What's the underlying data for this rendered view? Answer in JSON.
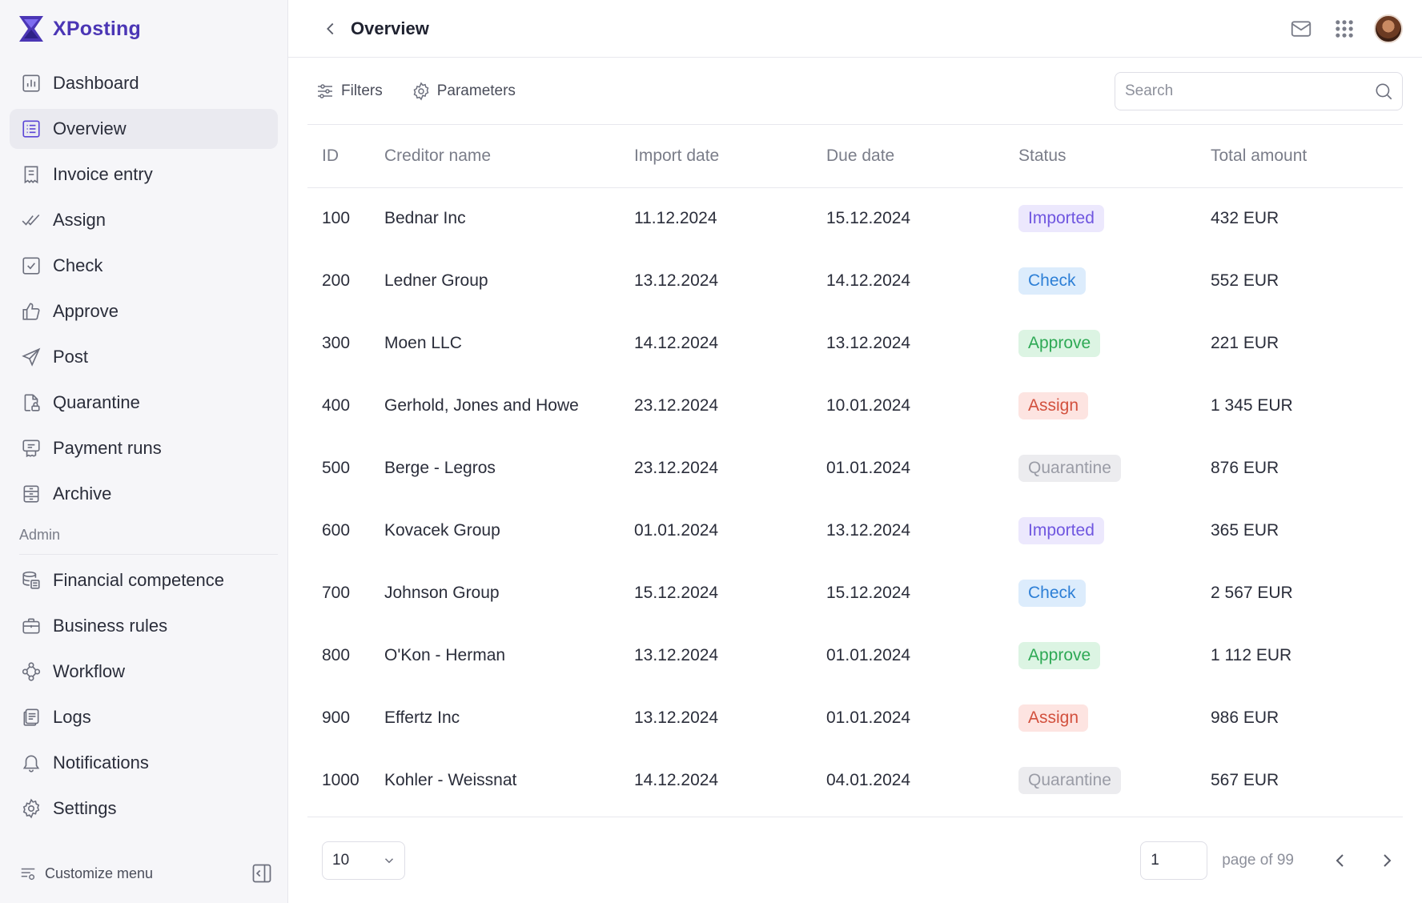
{
  "brand": {
    "name": "XPosting",
    "accent": "#4b36b5"
  },
  "sidebar": {
    "items": [
      {
        "label": "Dashboard",
        "icon": "chart-icon"
      },
      {
        "label": "Overview",
        "icon": "list-icon",
        "active": true
      },
      {
        "label": "Invoice entry",
        "icon": "receipt-icon"
      },
      {
        "label": "Assign",
        "icon": "double-check-icon"
      },
      {
        "label": "Check",
        "icon": "checkbox-icon"
      },
      {
        "label": "Approve",
        "icon": "thumbs-up-icon"
      },
      {
        "label": "Post",
        "icon": "send-icon"
      },
      {
        "label": "Quarantine",
        "icon": "file-lock-icon"
      },
      {
        "label": "Payment runs",
        "icon": "payment-icon"
      },
      {
        "label": "Archive",
        "icon": "archive-icon"
      }
    ],
    "admin_label": "Admin",
    "admin_items": [
      {
        "label": "Financial competence",
        "icon": "database-icon"
      },
      {
        "label": "Business rules",
        "icon": "briefcase-icon"
      },
      {
        "label": "Workflow",
        "icon": "workflow-icon"
      },
      {
        "label": "Logs",
        "icon": "logs-icon"
      },
      {
        "label": "Notifications",
        "icon": "bell-icon"
      },
      {
        "label": "Settings",
        "icon": "gear-icon"
      }
    ],
    "customize_label": "Customize menu"
  },
  "header": {
    "title": "Overview"
  },
  "toolbar": {
    "filters_label": "Filters",
    "parameters_label": "Parameters",
    "search_placeholder": "Search"
  },
  "table": {
    "columns": [
      "ID",
      "Creditor name",
      "Import date",
      "Due date",
      "Status",
      "Total amount"
    ],
    "rows": [
      {
        "id": "100",
        "name": "Bednar Inc",
        "import": "11.12.2024",
        "due": "15.12.2024",
        "status": "Imported",
        "amount": "432 EUR"
      },
      {
        "id": "200",
        "name": "Ledner Group",
        "import": "13.12.2024",
        "due": "14.12.2024",
        "status": "Check",
        "amount": "552 EUR"
      },
      {
        "id": "300",
        "name": "Moen LLC",
        "import": "14.12.2024",
        "due": "13.12.2024",
        "status": "Approve",
        "amount": "221 EUR"
      },
      {
        "id": "400",
        "name": "Gerhold, Jones and Howe",
        "import": "23.12.2024",
        "due": "10.01.2024",
        "status": "Assign",
        "amount": "1 345 EUR"
      },
      {
        "id": "500",
        "name": "Berge - Legros",
        "import": "23.12.2024",
        "due": "01.01.2024",
        "status": "Quarantine",
        "amount": "876 EUR"
      },
      {
        "id": "600",
        "name": "Kovacek Group",
        "import": "01.01.2024",
        "due": "13.12.2024",
        "status": "Imported",
        "amount": "365 EUR"
      },
      {
        "id": "700",
        "name": "Johnson Group",
        "import": "15.12.2024",
        "due": "15.12.2024",
        "status": "Check",
        "amount": "2 567 EUR"
      },
      {
        "id": "800",
        "name": "O'Kon - Herman",
        "import": "13.12.2024",
        "due": "01.01.2024",
        "status": "Approve",
        "amount": "1 112 EUR"
      },
      {
        "id": "900",
        "name": "Effertz Inc",
        "import": "13.12.2024",
        "due": "01.01.2024",
        "status": "Assign",
        "amount": "986 EUR"
      },
      {
        "id": "1000",
        "name": "Kohler - Weissnat",
        "import": "14.12.2024",
        "due": "04.01.2024",
        "status": "Quarantine",
        "amount": "567 EUR"
      }
    ]
  },
  "pagination": {
    "page_size": "10",
    "current_page": "1",
    "page_of_label": "page of 99"
  }
}
